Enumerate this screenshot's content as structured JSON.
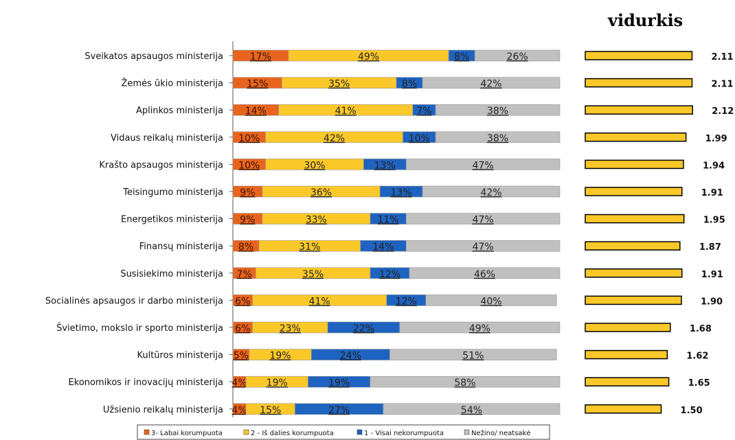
{
  "chart_data": [
    {
      "type": "bar",
      "stacked": true,
      "orientation": "horizontal",
      "categories": [
        "Sveikatos apsaugos ministerija",
        "Žemės ūkio ministerija",
        "Aplinkos ministerija",
        "Vidaus reikalų ministerija",
        "Krašto apsaugos ministerija",
        "Teisingumo ministerija",
        "Energetikos ministerija",
        "Finansų ministerija",
        "Susisiekimo ministerija",
        "Socialinės apsaugos ir darbo ministerija",
        "Švietimo, mokslo ir sporto ministerija",
        "Kultūros ministerija",
        "Ekonomikos ir inovacijų ministerija",
        "Užsienio reikalų ministerija"
      ],
      "series": [
        {
          "name": "3- Labai korumpuota",
          "color": "#e8641e",
          "values": [
            17,
            15,
            14,
            10,
            10,
            9,
            9,
            8,
            7,
            6,
            6,
            5,
            4,
            4
          ],
          "labels": [
            "17%",
            "15%",
            "14%",
            "10%",
            "10%",
            "9%",
            "9%",
            "8%",
            "7%",
            "6%",
            "6%",
            "5%",
            "4%",
            "4%"
          ]
        },
        {
          "name": "2 - Iš dalies korumpuota",
          "color": "#fbc82a",
          "values": [
            49,
            35,
            41,
            42,
            30,
            36,
            33,
            31,
            35,
            41,
            23,
            19,
            19,
            15
          ],
          "labels": [
            "49%",
            "35%",
            "41%",
            "42%",
            "30%",
            "36%",
            "33%",
            "31%",
            "35%",
            "41%",
            "23%",
            "19%",
            "19%",
            "15%"
          ]
        },
        {
          "name": "1 - Visai nekorumpuota",
          "color": "#1f63c0",
          "values": [
            8,
            8,
            7,
            10,
            13,
            13,
            11,
            14,
            12,
            12,
            22,
            24,
            19,
            27
          ],
          "labels": [
            "8%",
            "8%",
            "7%",
            "10%",
            "13%",
            "13%",
            "11%",
            "14%",
            "12%",
            "12%",
            "22%",
            "24%",
            "19%",
            "27%"
          ]
        },
        {
          "name": "Nežino/ neatsakė",
          "color": "#c0c0c0",
          "values": [
            26,
            42,
            38,
            38,
            47,
            42,
            47,
            47,
            46,
            40,
            49,
            51,
            58,
            54
          ],
          "labels": [
            "26%",
            "42%",
            "38%",
            "38%",
            "47%",
            "42%",
            "47%",
            "47%",
            "46%",
            "40%",
            "49%",
            "51%",
            "58%",
            "54%"
          ]
        }
      ],
      "xlim": [
        0,
        100
      ],
      "legend": "bottom"
    },
    {
      "type": "bar",
      "orientation": "horizontal",
      "title": "vidurkis",
      "color": "#fbc82a",
      "values": [
        2.11,
        2.11,
        2.12,
        1.99,
        1.94,
        1.91,
        1.95,
        1.87,
        1.91,
        1.9,
        1.68,
        1.62,
        1.65,
        1.5
      ],
      "labels": [
        "2.11",
        "2.11",
        "2.12",
        "1.99",
        "1.94",
        "1.91",
        "1.95",
        "1.87",
        "1.91",
        "1.90",
        "1.68",
        "1.62",
        "1.65",
        "1.50"
      ]
    }
  ]
}
